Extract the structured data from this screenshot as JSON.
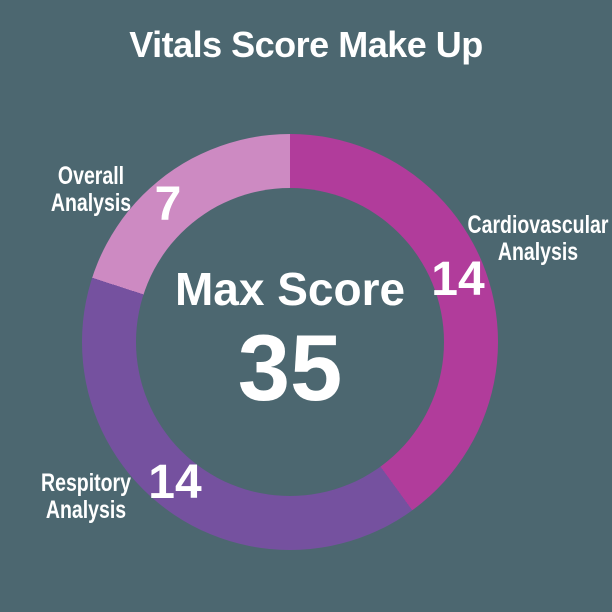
{
  "app": {
    "background_color": "#4C6770",
    "text_color": "#FFFFFF"
  },
  "title": "Vitals Score Make Up",
  "chart_data": {
    "type": "pie",
    "subtype": "donut",
    "title": "Vitals Score Make Up",
    "start_angle_deg": 0,
    "direction": "clockwise",
    "total": 35,
    "center_label": "Max Score",
    "center_value": "35",
    "segments": [
      {
        "label": "Cardiovascular Analysis",
        "value": 14,
        "color": "#B13C9B"
      },
      {
        "label": "Respitory Analysis",
        "value": 14,
        "color": "#75519F"
      },
      {
        "label": "Overall Analysis",
        "value": 7,
        "color": "#CD8AC2"
      }
    ],
    "value_labels_shown": true,
    "legend_position": "labels-around-ring"
  }
}
